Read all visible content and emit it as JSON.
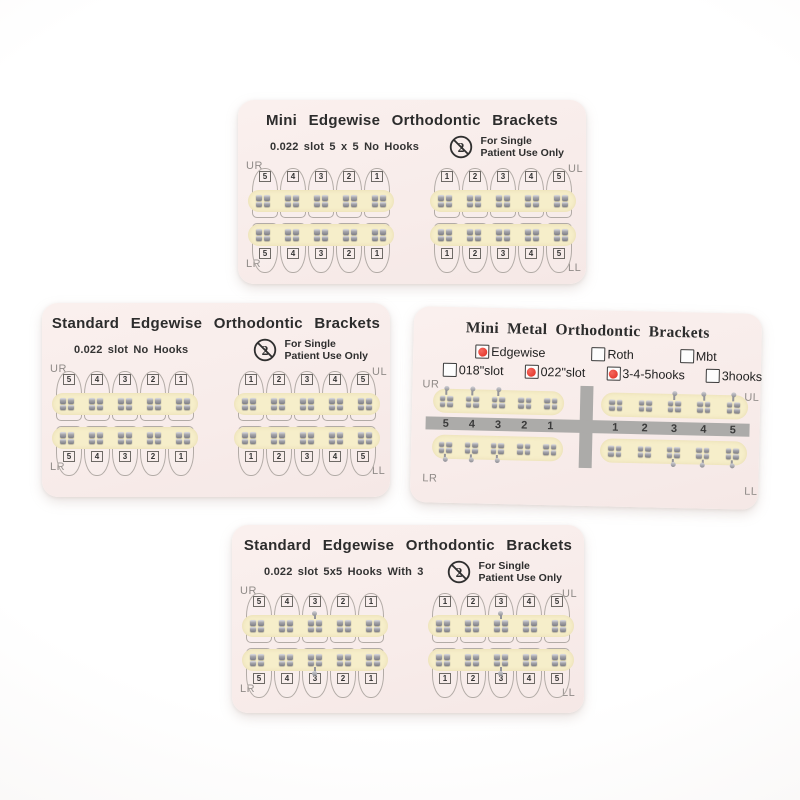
{
  "colors": {
    "background": "#ffffff",
    "card_background": "#f8ecea",
    "bracket_strip": "#f6eeca",
    "bracket_metal": "#9a9aa0",
    "arch_bar_gray": "#acaba9",
    "tooth_outline": "#b2aba6",
    "checkbox_red": "#e02a1f",
    "text_dark": "#2c2c2c",
    "quadrant_label_gray": "#908b88"
  },
  "cards": [
    {
      "id": "mini-edgewise",
      "style": "teeth",
      "title": "Mini Edgewise Orthodontic Brackets",
      "subtitle": "0.022 slot 5 x 5 No Hooks",
      "single_use": {
        "icon": "no-reuse-2-icon",
        "line1": "For Single",
        "line2": "Patient Use Only"
      },
      "quadrant_labels": {
        "upper_left": "UR",
        "upper_right": "UL",
        "lower_left": "LR",
        "lower_right": "LL"
      },
      "numbers_left": [
        "5",
        "4",
        "3",
        "2",
        "1"
      ],
      "numbers_right": [
        "1",
        "2",
        "3",
        "4",
        "5"
      ],
      "hook_teeth": []
    },
    {
      "id": "standard-edgewise-no-hooks",
      "style": "teeth",
      "title": "Standard Edgewise Orthodontic Brackets",
      "subtitle": "0.022 slot No Hooks",
      "single_use": {
        "icon": "no-reuse-2-icon",
        "line1": "For Single",
        "line2": "Patient Use Only"
      },
      "quadrant_labels": {
        "upper_left": "UR",
        "upper_right": "UL",
        "lower_left": "LR",
        "lower_right": "LL"
      },
      "numbers_left": [
        "5",
        "4",
        "3",
        "2",
        "1"
      ],
      "numbers_right": [
        "1",
        "2",
        "3",
        "4",
        "5"
      ],
      "hook_teeth": []
    },
    {
      "id": "mini-metal",
      "style": "bar",
      "title": "Mini Metal Orthodontic Brackets",
      "checkbox_rows": [
        {
          "items": [
            {
              "label": "Edgewise",
              "checked": true
            },
            {
              "label": "Roth",
              "checked": false
            },
            {
              "label": "Mbt",
              "checked": false
            }
          ]
        },
        {
          "items": [
            {
              "label": "018\"slot",
              "checked": false
            },
            {
              "label": "022\"slot",
              "checked": true
            },
            {
              "label": "3-4-5hooks",
              "checked": true
            },
            {
              "label": "3hooks",
              "checked": false
            }
          ]
        }
      ],
      "quadrant_labels": {
        "upper_left": "UR",
        "upper_right": "UL",
        "lower_left": "LR",
        "lower_right": "LL"
      },
      "numbers_left": [
        "5",
        "4",
        "3",
        "2",
        "1"
      ],
      "numbers_right": [
        "1",
        "2",
        "3",
        "4",
        "5"
      ],
      "hook_teeth": [
        "3",
        "4",
        "5"
      ]
    },
    {
      "id": "standard-edgewise-hooks-with-3",
      "style": "teeth",
      "title": "Standard Edgewise Orthodontic Brackets",
      "subtitle": "0.022 slot 5x5 Hooks With 3",
      "single_use": {
        "icon": "no-reuse-2-icon",
        "line1": "For Single",
        "line2": "Patient Use Only"
      },
      "quadrant_labels": {
        "upper_left": "UR",
        "upper_right": "UL",
        "lower_left": "LR",
        "lower_right": "LL"
      },
      "numbers_left": [
        "5",
        "4",
        "3",
        "2",
        "1"
      ],
      "numbers_right": [
        "1",
        "2",
        "3",
        "4",
        "5"
      ],
      "hook_teeth": [
        "3"
      ]
    }
  ]
}
